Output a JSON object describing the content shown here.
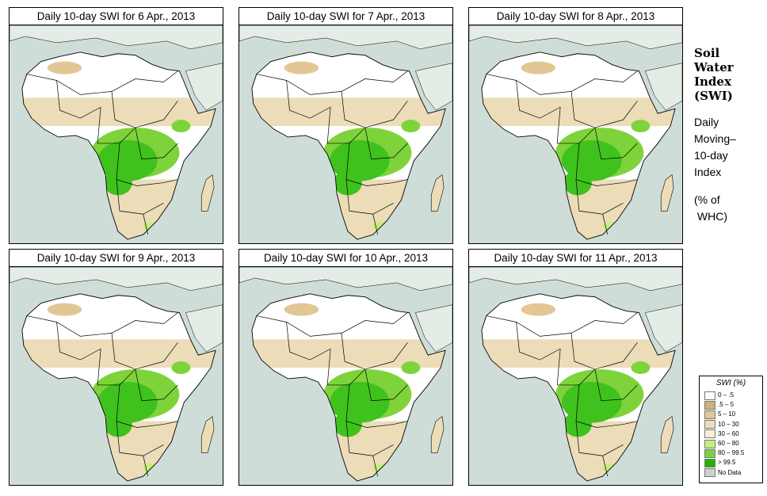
{
  "panels": [
    {
      "title": "Daily 10-day SWI for  6 Apr., 2013"
    },
    {
      "title": "Daily 10-day SWI for  7 Apr., 2013"
    },
    {
      "title": "Daily 10-day SWI for  8 Apr., 2013"
    },
    {
      "title": "Daily 10-day SWI for  9 Apr., 2013"
    },
    {
      "title": "Daily 10-day SWI for  10 Apr., 2013"
    },
    {
      "title": "Daily 10-day SWI for  11 Apr., 2013"
    }
  ],
  "sidebar": {
    "heading_lines": [
      "Soil",
      "Water",
      "Index",
      "(SWI)"
    ],
    "subtitle_lines": [
      "Daily",
      "Moving–",
      "10-day",
      "Index"
    ],
    "unit_lines": [
      "(% of",
      " WHC)"
    ]
  },
  "legend": {
    "title": "SWI (%)",
    "items": [
      {
        "label": "0 – .5",
        "color": "#ffffff"
      },
      {
        "label": ".5 – 5",
        "color": "#cdb27d"
      },
      {
        "label": "5 – 10",
        "color": "#e2c795"
      },
      {
        "label": "10 – 30",
        "color": "#efdfbb"
      },
      {
        "label": "30 – 60",
        "color": "#f6f0d6"
      },
      {
        "label": "60 – 80",
        "color": "#c8ee7a"
      },
      {
        "label": "80 – 99.5",
        "color": "#7ed33a"
      },
      {
        "label": "> 99.5",
        "color": "#1fb400"
      },
      {
        "label": "No Data",
        "color": "#c9d3cf"
      }
    ]
  },
  "colors": {
    "ocean": "#cfddd8",
    "desert": "#ffffff",
    "sahel": "#ecdcb8",
    "wet": "#3fc21e"
  }
}
